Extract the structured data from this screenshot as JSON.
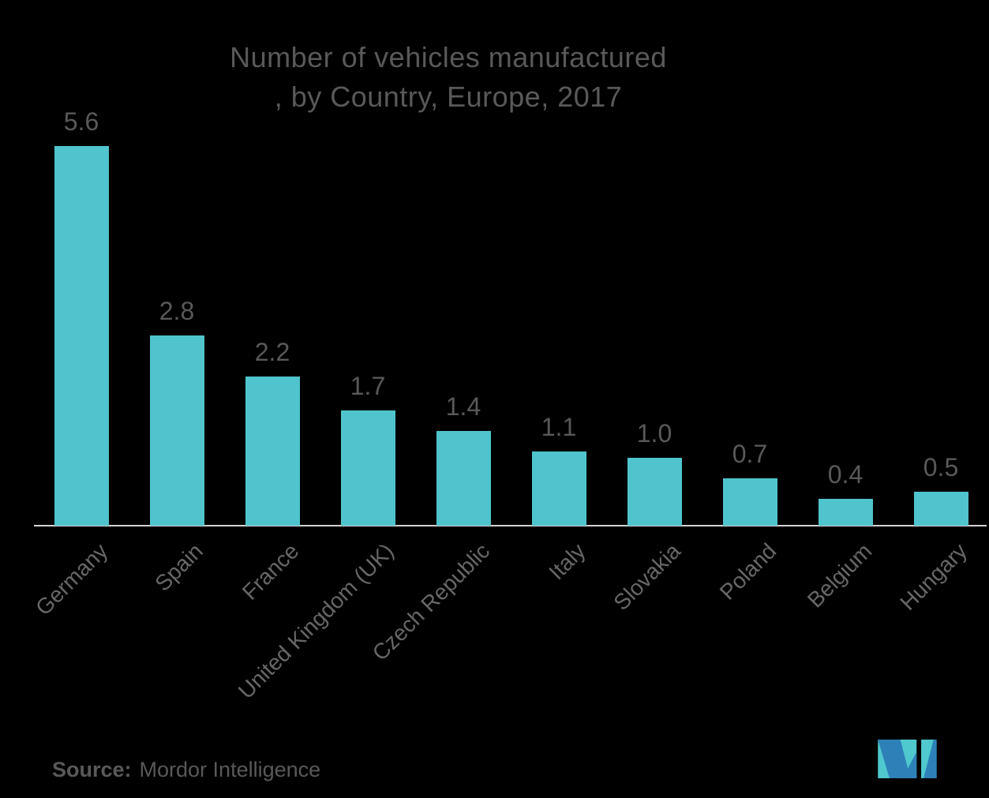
{
  "title": {
    "line1": "Number of vehicles manufactured",
    "line2": ", by Country, Europe, 2017"
  },
  "source": {
    "prefix": "Source:",
    "text": "Mordor Intelligence"
  },
  "logo": {
    "name": "mordor-intelligence-logo",
    "blue": "#2E81B8",
    "teal": "#4FC8CE"
  },
  "colors": {
    "background": "#000000",
    "bar": "#4FC4CC",
    "axis_line": "#D4D2D2",
    "label_text": "#595959",
    "category_text": "#676767"
  },
  "chart_data": {
    "type": "bar",
    "title": "Number of vehicles manufactured, by Country, Europe, 2017",
    "categories": [
      "Germany",
      "Spain",
      "France",
      "United Kingdom (UK)",
      "Czech Republic",
      "Italy",
      "Slovakia",
      "Poland",
      "Belgium",
      "Hungary"
    ],
    "values": [
      5.6,
      2.8,
      2.2,
      1.7,
      1.4,
      1.1,
      1.0,
      0.7,
      0.4,
      0.5
    ],
    "value_labels": [
      "5.6",
      "2.8",
      "2.2",
      "1.7",
      "1.4",
      "1.1",
      "1.0",
      "0.7",
      "0.4",
      "0.5"
    ],
    "xlabel": "",
    "ylabel": "",
    "ylim": [
      0,
      5.6
    ],
    "grid": false,
    "legend": "none",
    "data_labels": "above bars",
    "category_label_rotation": -45
  }
}
